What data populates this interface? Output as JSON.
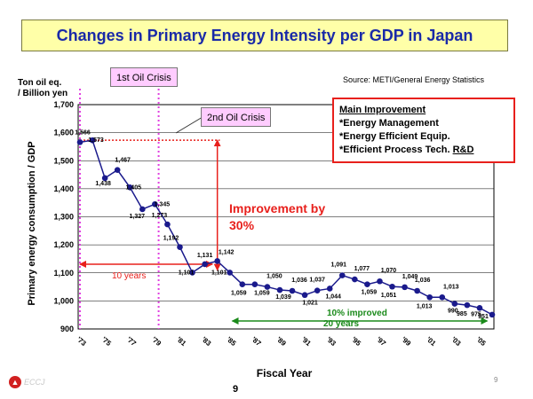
{
  "title": "Changes in Primary Energy Intensity per GDP in Japan",
  "unit_label_1": "Ton oil eq.",
  "unit_label_2": "/ Billion yen",
  "source": "Source: METI/General Energy Statistics",
  "ylabel_text": "Primary energy consumption / GDP",
  "xlabel_text": "Fiscal Year",
  "oil_crisis_1": "1st Oil Crisis",
  "oil_crisis_2": "2nd Oil Crisis",
  "main_improvement": {
    "heading": "Main Improvement",
    "item1": "*Energy Management",
    "item2": "*Energy Efficient Equip.",
    "item3_prefix": "*Efficient Process Tech. ",
    "item3_rd": "R&D"
  },
  "improvement_line1": "Improvement by",
  "improvement_line2": "30%",
  "ten_years": "10 years",
  "ten_percent": "10% improved",
  "twenty_years": "20 years",
  "logo_text": "ECCJ",
  "page_number": "9",
  "page_number_small": "9",
  "colors": {
    "title_bg": "#ffffa8",
    "title_text": "#1a2aa8",
    "series": "#1a1a8c",
    "red": "#e8201c",
    "green": "#1a8a1a",
    "magenta": "#e040e0",
    "callout_bg": "#ffccff"
  },
  "chart_data": {
    "type": "line",
    "title": "Changes in Primary Energy Intensity per GDP in Japan",
    "xlabel": "Fiscal Year",
    "ylabel": "Primary energy consumption / GDP",
    "ylim": [
      900,
      1700
    ],
    "yticks": [
      900,
      1000,
      1100,
      1200,
      1300,
      1400,
      1500,
      1600,
      1700
    ],
    "ytick_labels": [
      "900",
      "1,000",
      "1,100",
      "1,200",
      "1,300",
      "1,400",
      "1,500",
      "1,600",
      "1,700"
    ],
    "xlim": [
      1973,
      2006
    ],
    "xticks": [
      1973,
      1975,
      1977,
      1979,
      1981,
      1983,
      1985,
      1987,
      1989,
      1991,
      1993,
      1995,
      1997,
      1999,
      2001,
      2003,
      2005
    ],
    "xtick_labels": [
      "'73",
      "'75",
      "'77",
      "'79",
      "'81",
      "'83",
      "'85",
      "'87",
      "'89",
      "'91",
      "'93",
      "'95",
      "'97",
      "'99",
      "'01",
      "'03",
      "'05"
    ],
    "grid": true,
    "series": [
      {
        "name": "Primary energy intensity",
        "x": [
          1973,
          1974,
          1975,
          1976,
          1977,
          1978,
          1979,
          1980,
          1981,
          1982,
          1983,
          1984,
          1985,
          1986,
          1987,
          1988,
          1989,
          1990,
          1991,
          1992,
          1993,
          1994,
          1995,
          1996,
          1997,
          1998,
          1999,
          2000,
          2001,
          2002,
          2003,
          2004,
          2005,
          2006
        ],
        "values": [
          1566,
          1573,
          1438,
          1467,
          1405,
          1327,
          1345,
          1273,
          1192,
          1101,
          1131,
          1142,
          1101,
          1059,
          1059,
          1050,
          1039,
          1036,
          1021,
          1037,
          1044,
          1091,
          1077,
          1059,
          1070,
          1051,
          1049,
          1036,
          1013,
          1013,
          990,
          985,
          975,
          951
        ],
        "labels": [
          "1,566",
          "1,573",
          "1,438",
          "1,467",
          "1,405",
          "1,327",
          "1,345",
          "1,273",
          "1,192",
          "1,101",
          "1,131",
          "1,142",
          "1,101",
          "1,059",
          "1,059",
          "1,050",
          "1,039",
          "1,036",
          "1,021",
          "1,037",
          "1,044",
          "1,091",
          "1,077",
          "1,059",
          "1,070",
          "1,051",
          "1,049",
          "1,036",
          "1,013",
          "1,013",
          "990",
          "985",
          "975",
          "951"
        ]
      }
    ],
    "annotations": [
      "1st Oil Crisis",
      "2nd Oil Crisis",
      "Improvement by 30%",
      "10 years",
      "10% improved",
      "20 years"
    ]
  }
}
